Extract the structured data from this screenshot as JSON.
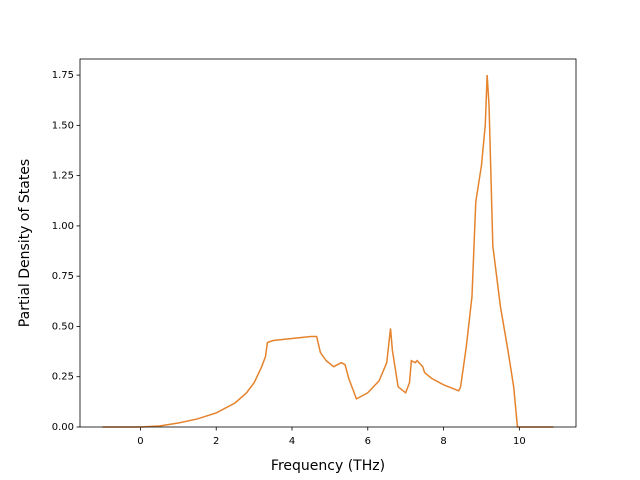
{
  "chart_data": {
    "type": "line",
    "xlabel": "Frequency (THz)",
    "ylabel": "Partial Density of States",
    "x": [
      -1,
      0,
      0.5,
      1,
      1.5,
      2,
      2.5,
      2.8,
      3.0,
      3.2,
      3.3,
      3.35,
      3.5,
      4,
      4.5,
      4.65,
      4.75,
      4.9,
      5.1,
      5.2,
      5.3,
      5.4,
      5.5,
      5.6,
      5.7,
      6.0,
      6.3,
      6.5,
      6.6,
      6.65,
      6.8,
      7.0,
      7.1,
      7.15,
      7.25,
      7.3,
      7.45,
      7.5,
      7.7,
      8.0,
      8.4,
      8.45,
      8.6,
      8.75,
      8.85,
      9.0,
      9.1,
      9.15,
      9.2,
      9.3,
      9.5,
      9.7,
      9.85,
      9.95,
      10.9
    ],
    "values": [
      0,
      0,
      0.005,
      0.02,
      0.04,
      0.07,
      0.12,
      0.17,
      0.22,
      0.3,
      0.35,
      0.42,
      0.43,
      0.44,
      0.45,
      0.45,
      0.37,
      0.33,
      0.3,
      0.31,
      0.32,
      0.31,
      0.24,
      0.19,
      0.14,
      0.17,
      0.23,
      0.32,
      0.49,
      0.38,
      0.2,
      0.17,
      0.22,
      0.33,
      0.32,
      0.33,
      0.3,
      0.27,
      0.24,
      0.21,
      0.18,
      0.2,
      0.4,
      0.65,
      1.12,
      1.3,
      1.5,
      1.75,
      1.6,
      0.9,
      0.6,
      0.38,
      0.2,
      0,
      0
    ],
    "color": "#e5832d",
    "xlim": [
      -1.595,
      11.495
    ],
    "ylim": [
      0,
      1.83
    ],
    "xticks": [
      0,
      2,
      4,
      6,
      8,
      10
    ],
    "yticks": [
      {
        "value": 0,
        "label": "0.00"
      },
      {
        "value": 0.25,
        "label": "0.25"
      },
      {
        "value": 0.5,
        "label": "0.50"
      },
      {
        "value": 0.75,
        "label": "0.75"
      },
      {
        "value": 1,
        "label": "1.00"
      },
      {
        "value": 1.25,
        "label": "1.25"
      },
      {
        "value": 1.5,
        "label": "1.50"
      },
      {
        "value": 1.75,
        "label": "1.75"
      }
    ]
  }
}
